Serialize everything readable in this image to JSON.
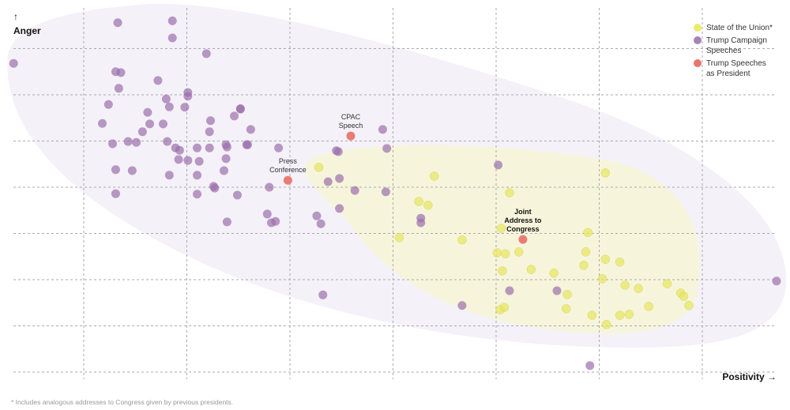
{
  "chart_data": {
    "type": "scatter",
    "title": "",
    "xlabel": "Positivity →",
    "ylabel": "↑ Anger",
    "ylabel_arrow": "↑",
    "ylabel_text": "Anger",
    "xlabel_text": "Positivity",
    "xlabel_arrow": "→",
    "xlim": [
      0,
      7.5
    ],
    "ylim": [
      0,
      8
    ],
    "x_gridlines": [
      1,
      2,
      3,
      4,
      5,
      6,
      7
    ],
    "y_gridlines": [
      0,
      1,
      2,
      3,
      4,
      5,
      6,
      7
    ],
    "grid": true,
    "legend_position": "top-right",
    "series": [
      {
        "name": "State of the Union*",
        "color": "#e8e560",
        "halo_color": "#f6f5dc",
        "points": [
          [
            3.28,
            4.43
          ],
          [
            4.4,
            4.24
          ],
          [
            6.06,
            4.31
          ],
          [
            4.25,
            3.69
          ],
          [
            4.34,
            3.61
          ],
          [
            5.13,
            3.88
          ],
          [
            4.06,
            2.91
          ],
          [
            4.67,
            2.86
          ],
          [
            5.05,
            3.11
          ],
          [
            5.89,
            3.02
          ],
          [
            5.01,
            2.58
          ],
          [
            5.09,
            2.56
          ],
          [
            5.22,
            2.6
          ],
          [
            5.87,
            2.6
          ],
          [
            5.34,
            2.22
          ],
          [
            5.06,
            2.19
          ],
          [
            5.56,
            2.14
          ],
          [
            5.85,
            2.31
          ],
          [
            6.06,
            2.44
          ],
          [
            6.2,
            2.38
          ],
          [
            6.03,
            2.02
          ],
          [
            5.69,
            1.68
          ],
          [
            6.25,
            1.88
          ],
          [
            6.38,
            1.81
          ],
          [
            6.66,
            1.91
          ],
          [
            6.79,
            1.71
          ],
          [
            6.82,
            1.64
          ],
          [
            6.87,
            1.44
          ],
          [
            5.04,
            1.35
          ],
          [
            5.08,
            1.4
          ],
          [
            5.68,
            1.37
          ],
          [
            5.93,
            1.23
          ],
          [
            6.2,
            1.23
          ],
          [
            6.29,
            1.25
          ],
          [
            6.07,
            1.03
          ],
          [
            6.48,
            1.42
          ]
        ]
      },
      {
        "name": "Trump Campaign Speeches",
        "color": "#9b6fab",
        "halo_color": "#f4f1f8",
        "points": [
          [
            0.32,
            6.68
          ],
          [
            1.33,
            7.56
          ],
          [
            1.86,
            7.6
          ],
          [
            1.86,
            7.23
          ],
          [
            2.19,
            6.89
          ],
          [
            1.31,
            6.5
          ],
          [
            1.36,
            6.48
          ],
          [
            1.72,
            6.31
          ],
          [
            1.34,
            6.14
          ],
          [
            2.01,
            6.05
          ],
          [
            1.8,
            5.91
          ],
          [
            2.01,
            5.97
          ],
          [
            1.24,
            5.79
          ],
          [
            1.83,
            5.74
          ],
          [
            1.98,
            5.73
          ],
          [
            1.62,
            5.62
          ],
          [
            2.52,
            5.69
          ],
          [
            2.46,
            5.54
          ],
          [
            1.18,
            5.38
          ],
          [
            2.23,
            5.44
          ],
          [
            1.64,
            5.37
          ],
          [
            1.77,
            5.37
          ],
          [
            1.57,
            5.2
          ],
          [
            2.62,
            5.25
          ],
          [
            1.43,
            4.99
          ],
          [
            1.28,
            4.94
          ],
          [
            1.51,
            4.97
          ],
          [
            1.81,
            4.99
          ],
          [
            2.22,
            5.2
          ],
          [
            2.38,
            4.92
          ],
          [
            2.39,
            4.87
          ],
          [
            2.58,
            4.92
          ],
          [
            1.89,
            4.85
          ],
          [
            1.93,
            4.8
          ],
          [
            2.89,
            4.85
          ],
          [
            2.22,
            4.85
          ],
          [
            2.1,
            4.85
          ],
          [
            2.01,
            4.58
          ],
          [
            1.92,
            4.6
          ],
          [
            2.12,
            4.56
          ],
          [
            2.38,
            4.62
          ],
          [
            1.31,
            4.38
          ],
          [
            1.47,
            4.36
          ],
          [
            1.83,
            4.26
          ],
          [
            2.1,
            4.26
          ],
          [
            2.36,
            4.36
          ],
          [
            2.27,
            3.98
          ],
          [
            2.26,
            4.02
          ],
          [
            2.49,
            3.83
          ],
          [
            1.31,
            3.86
          ],
          [
            2.1,
            3.85
          ],
          [
            2.8,
            4.0
          ],
          [
            2.39,
            3.25
          ],
          [
            2.78,
            3.42
          ],
          [
            2.82,
            3.23
          ],
          [
            2.86,
            3.26
          ],
          [
            3.26,
            3.38
          ],
          [
            3.3,
            3.21
          ],
          [
            3.48,
            3.54
          ],
          [
            3.37,
            4.12
          ],
          [
            3.48,
            4.19
          ],
          [
            3.63,
            3.93
          ],
          [
            3.93,
            3.9
          ],
          [
            3.45,
            4.79
          ],
          [
            3.47,
            4.77
          ],
          [
            3.9,
            5.25
          ],
          [
            3.94,
            4.84
          ],
          [
            5.02,
            4.48
          ],
          [
            4.27,
            3.33
          ],
          [
            4.27,
            3.23
          ],
          [
            3.32,
            1.67
          ],
          [
            4.67,
            1.44
          ],
          [
            5.13,
            1.76
          ],
          [
            5.59,
            1.76
          ],
          [
            5.91,
            0.14
          ],
          [
            7.72,
            1.97
          ],
          [
            2.59,
            4.92
          ],
          [
            2.52,
            5.7
          ]
        ]
      },
      {
        "name": "Trump Speeches as President",
        "color": "#e8766f",
        "points": [
          [
            3.59,
            5.11
          ],
          [
            2.98,
            4.15
          ],
          [
            5.26,
            2.87
          ]
        ],
        "labels": [
          "CPAC Speech",
          "Press Conference",
          "Joint Address to Congress"
        ]
      }
    ],
    "annotations": [
      {
        "text_lines": [
          "CPAC",
          "Speech"
        ],
        "point_series": 2,
        "point_index": 0,
        "bold": false
      },
      {
        "text_lines": [
          "Press",
          "Conference"
        ],
        "point_series": 2,
        "point_index": 1,
        "bold": false
      },
      {
        "text_lines": [
          "Joint",
          "Address to",
          "Congress"
        ],
        "point_series": 2,
        "point_index": 2,
        "bold": true
      }
    ]
  },
  "legend": [
    {
      "label_lines": [
        "State of the Union*"
      ],
      "color": "#ecea6c"
    },
    {
      "label_lines": [
        "Trump Campaign",
        "Speeches"
      ],
      "color": "#a585b5"
    },
    {
      "label_lines": [
        "Trump Speeches",
        "as President"
      ],
      "color": "#e8766f"
    }
  ],
  "footnote": "* Includes analogous addresses to Congress given by previous presidents."
}
